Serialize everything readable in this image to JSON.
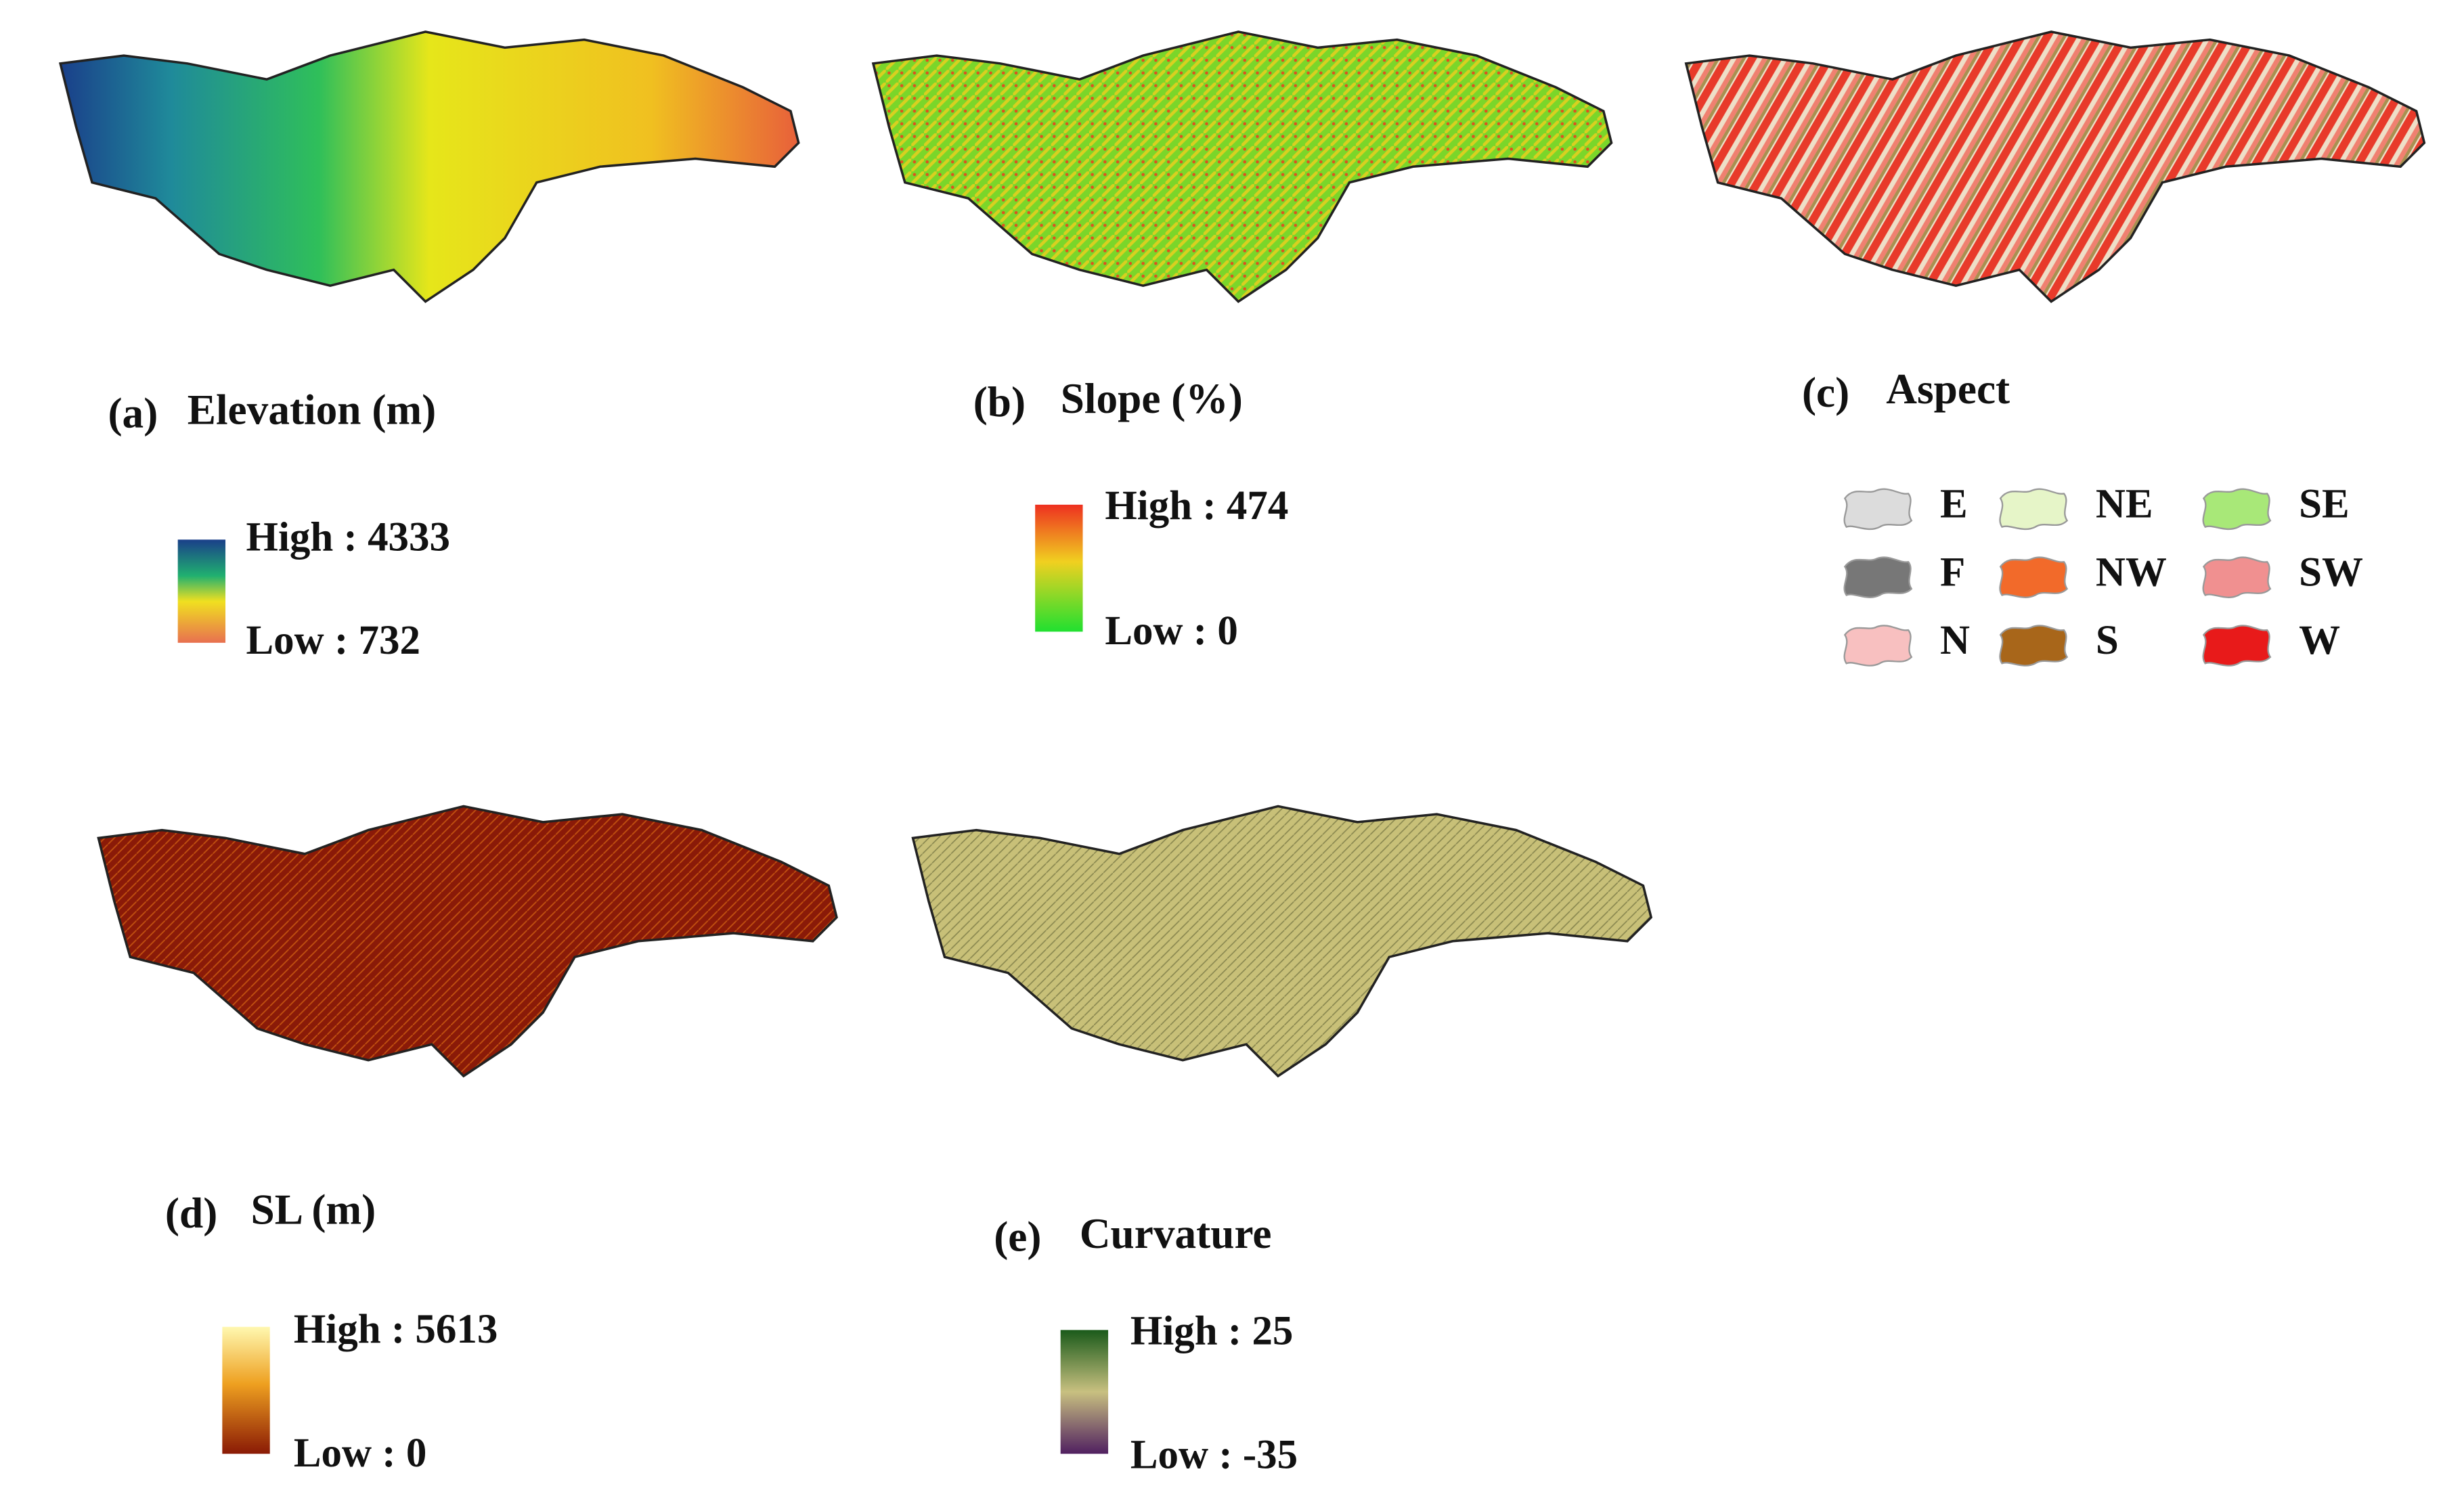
{
  "panels": [
    {
      "label": "(a)",
      "title": "Elevation (m)",
      "legend": {
        "high": "High : 4333",
        "low": "Low : 732"
      }
    },
    {
      "label": "(b)",
      "title": "Slope (%)",
      "legend": {
        "high": "High : 474",
        "low": "Low : 0"
      }
    },
    {
      "label": "(c)",
      "title": "Aspect",
      "legend": {
        "items": [
          "E",
          "NE",
          "SE",
          "F",
          "NW",
          "SW",
          "N",
          "S",
          "W"
        ]
      }
    },
    {
      "label": "(d)",
      "title": "SL (m)",
      "legend": {
        "high": "High : 5613",
        "low": "Low : 0"
      }
    },
    {
      "label": "(e)",
      "title": "Curvature",
      "legend": {
        "high": "High : 25",
        "low": "Low : -35"
      }
    }
  ]
}
